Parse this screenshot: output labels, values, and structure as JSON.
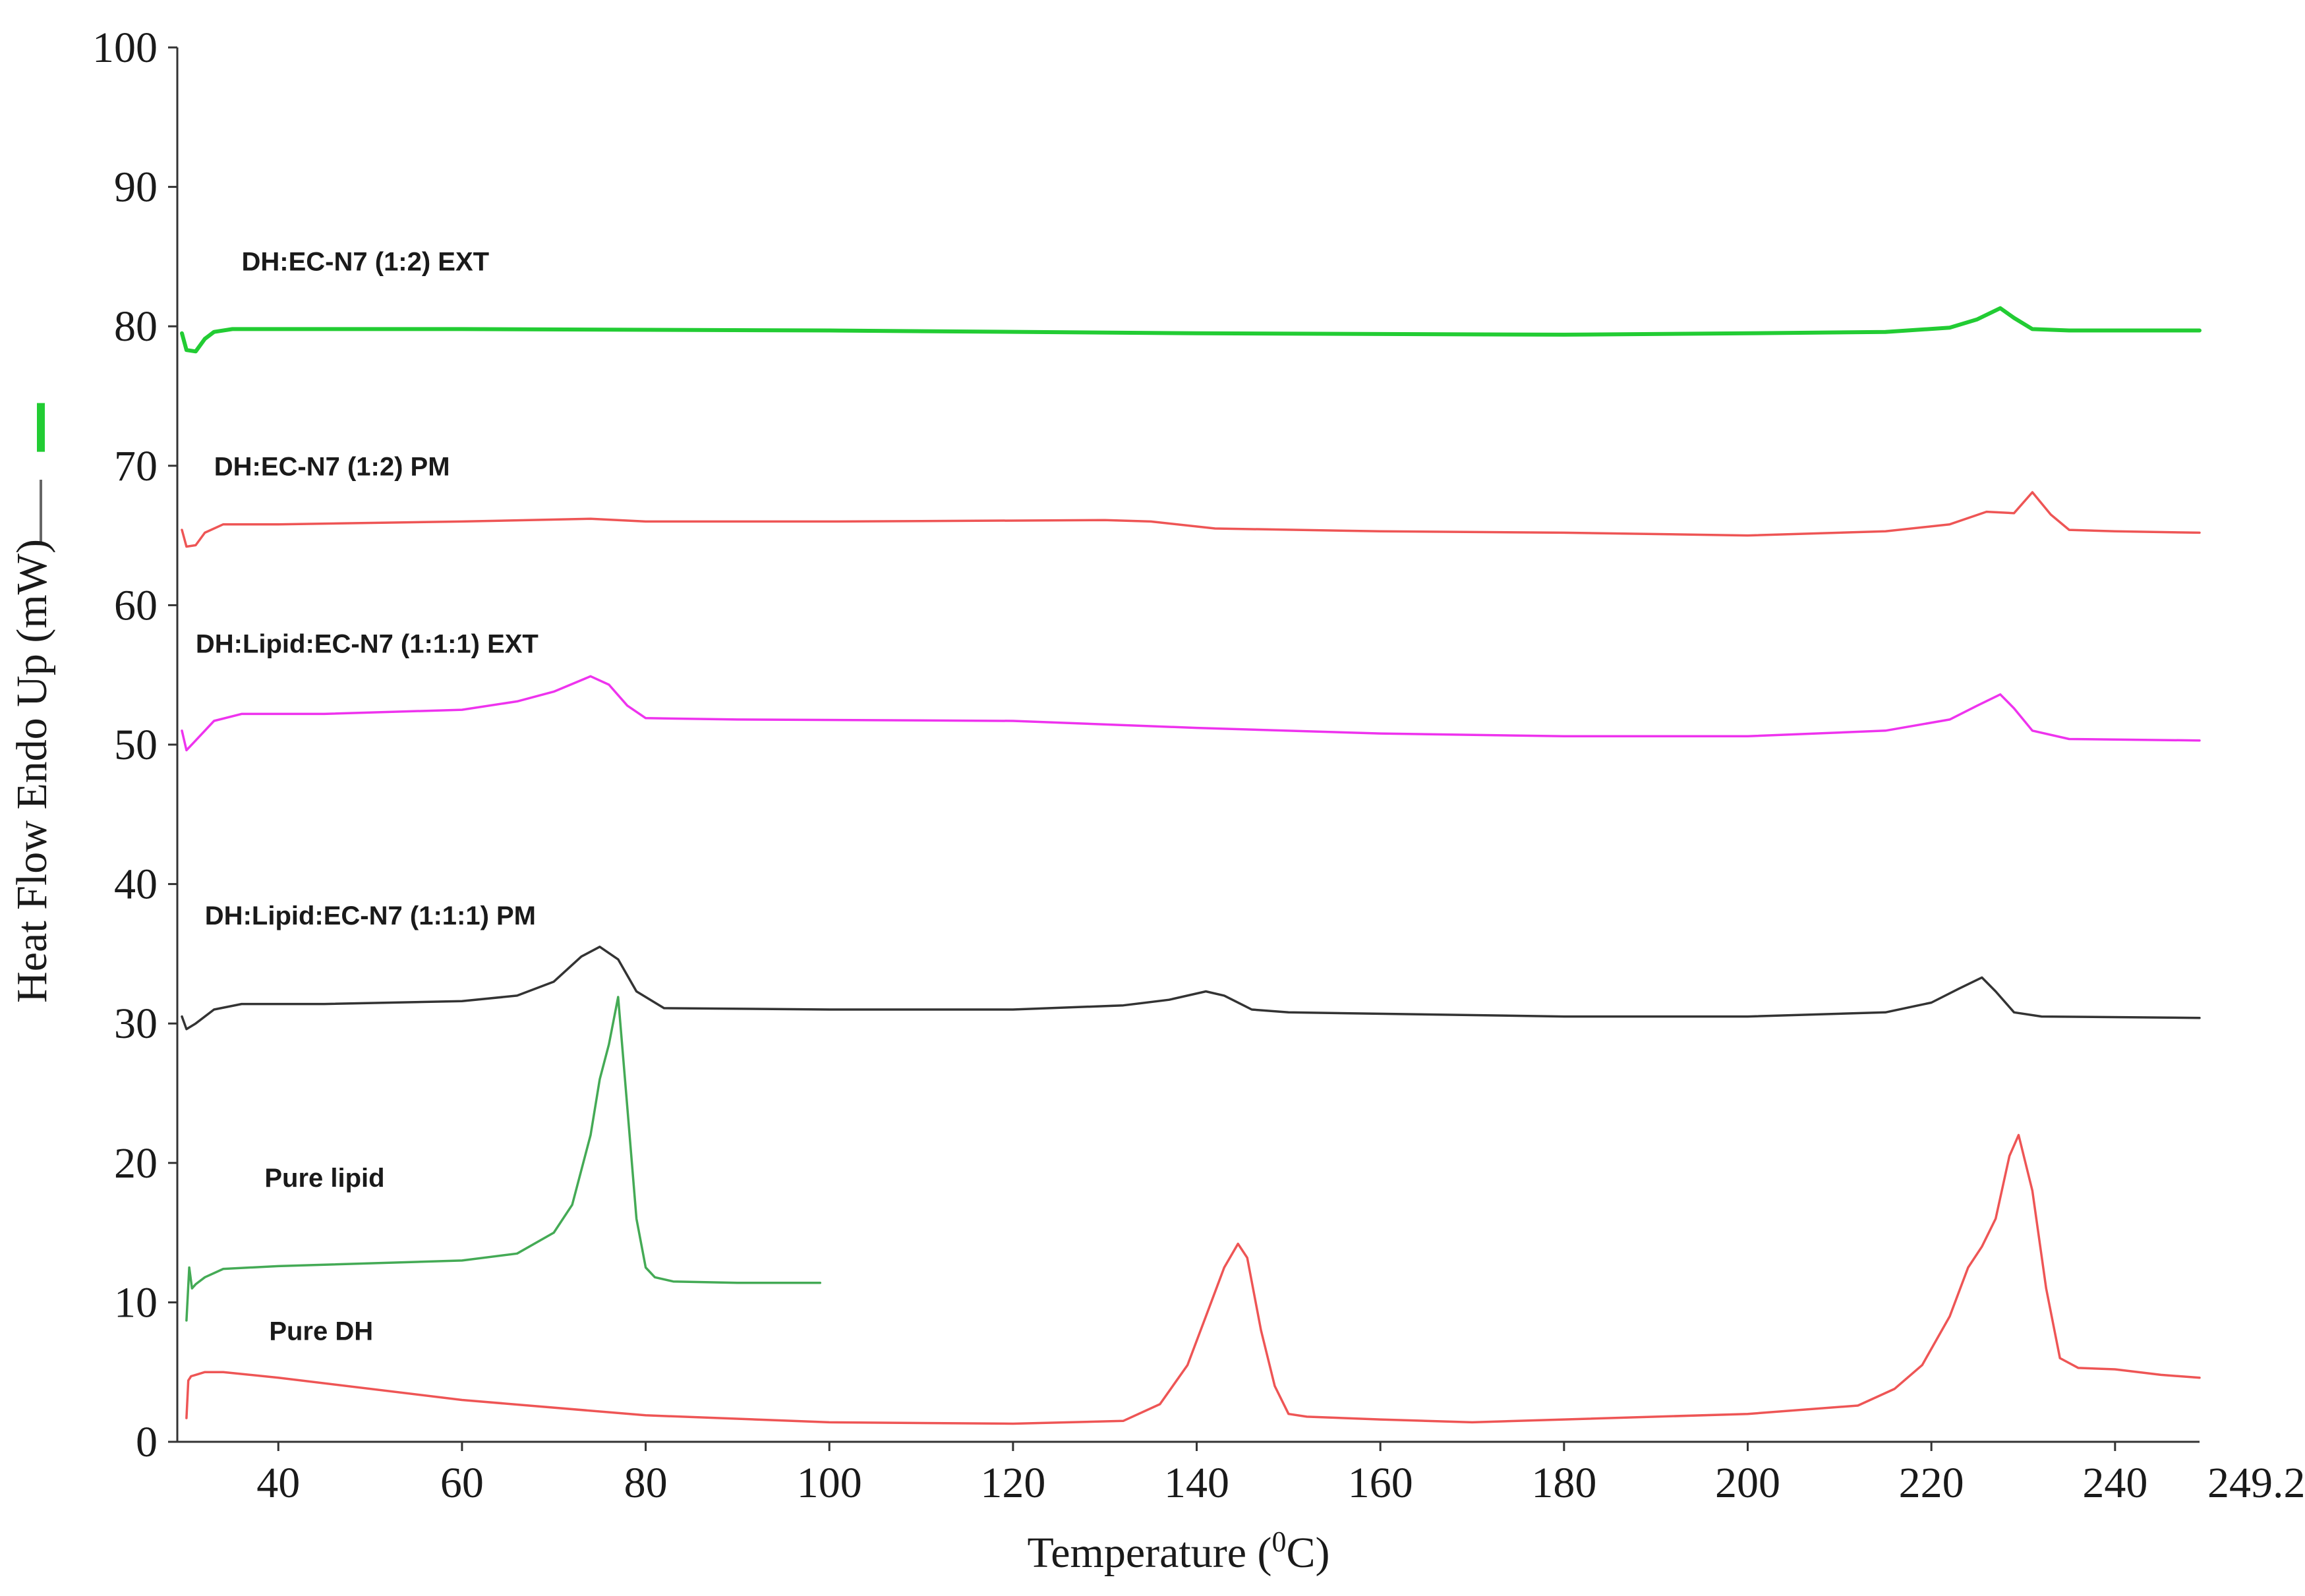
{
  "chart_data": {
    "type": "line",
    "title": "",
    "xlabel": "Temperature (",
    "xlabel_superscript": "0",
    "xlabel_suffix": "C)",
    "ylabel": "Heat Flow Endo Up (mW)",
    "xlim": [
      29,
      249.2
    ],
    "ylim": [
      0,
      100
    ],
    "x_ticks": [
      40,
      60,
      80,
      100,
      120,
      140,
      160,
      180,
      200,
      220,
      240
    ],
    "x_end_label": "249.2",
    "y_ticks": [
      0,
      10,
      20,
      30,
      40,
      50,
      60,
      70,
      80,
      90,
      100
    ],
    "grid": false,
    "series": [
      {
        "name": "DH:EC-N7 (1:2) EXT",
        "color": "#22cc33",
        "label_anchor": [
          36,
          84
        ],
        "x": [
          29.5,
          30,
          31,
          32,
          33,
          35,
          40,
          60,
          100,
          140,
          180,
          200,
          215,
          222,
          225,
          227.5,
          229,
          231,
          235,
          249.2
        ],
        "y": [
          79.5,
          78.3,
          78.2,
          79.1,
          79.6,
          79.8,
          79.8,
          79.8,
          79.7,
          79.5,
          79.4,
          79.5,
          79.6,
          79.9,
          80.5,
          81.3,
          80.6,
          79.8,
          79.7,
          79.7
        ]
      },
      {
        "name": "DH:EC-N7 (1:2) PM",
        "color": "#ee5555",
        "label_anchor": [
          33,
          69.3
        ],
        "x": [
          29.5,
          30,
          31,
          32,
          34,
          40,
          60,
          74,
          80,
          100,
          130,
          135,
          142,
          160,
          180,
          200,
          215,
          222,
          226,
          229,
          231,
          233,
          235,
          240,
          249.2
        ],
        "y": [
          65.4,
          64.2,
          64.3,
          65.2,
          65.8,
          65.8,
          66.0,
          66.2,
          66.0,
          66.0,
          66.1,
          66.0,
          65.5,
          65.3,
          65.2,
          65.0,
          65.3,
          65.8,
          66.7,
          66.6,
          68.1,
          66.5,
          65.4,
          65.3,
          65.2
        ]
      },
      {
        "name": "DH:Lipid:EC-N7 (1:1:1) EXT",
        "color": "#ee33ee",
        "label_anchor": [
          31,
          56.6
        ],
        "x": [
          29.5,
          30,
          31,
          33,
          36,
          45,
          60,
          66,
          70,
          74,
          76,
          78,
          80,
          90,
          120,
          140,
          160,
          180,
          200,
          215,
          222,
          225,
          227.5,
          229,
          231,
          235,
          249.2
        ],
        "y": [
          51.0,
          49.6,
          50.3,
          51.7,
          52.2,
          52.2,
          52.5,
          53.1,
          53.8,
          54.9,
          54.3,
          52.8,
          51.9,
          51.8,
          51.7,
          51.2,
          50.8,
          50.6,
          50.6,
          51.0,
          51.8,
          52.8,
          53.6,
          52.6,
          51.0,
          50.4,
          50.3
        ]
      },
      {
        "name": "DH:Lipid:EC-N7 (1:1:1) PM",
        "color": "#333333",
        "label_anchor": [
          32,
          37.1
        ],
        "x": [
          29.5,
          30,
          31,
          33,
          36,
          45,
          60,
          66,
          70,
          73,
          75,
          77,
          79,
          82,
          100,
          120,
          132,
          137,
          141,
          143,
          146,
          150,
          180,
          200,
          215,
          220,
          223,
          225.5,
          227,
          229,
          232,
          249.2
        ],
        "y": [
          30.5,
          29.6,
          30.0,
          31.0,
          31.4,
          31.4,
          31.6,
          32.0,
          33.0,
          34.8,
          35.5,
          34.6,
          32.3,
          31.1,
          31.0,
          31.0,
          31.3,
          31.7,
          32.3,
          32.0,
          31.0,
          30.8,
          30.5,
          30.5,
          30.8,
          31.5,
          32.5,
          33.3,
          32.3,
          30.8,
          30.5,
          30.4
        ]
      },
      {
        "name": "Pure lipid",
        "color": "#44aa55",
        "label_anchor": [
          38.5,
          18.3
        ],
        "x": [
          30,
          30.3,
          30.6,
          31,
          32,
          34,
          40,
          60,
          66,
          70,
          72,
          74,
          75,
          76,
          77,
          78,
          79,
          80,
          81,
          83,
          90,
          99
        ],
        "y": [
          8.7,
          12.5,
          11.0,
          11.3,
          11.8,
          12.4,
          12.6,
          13.0,
          13.5,
          15.0,
          17.0,
          22.0,
          26.0,
          28.5,
          31.9,
          24.0,
          16.0,
          12.5,
          11.8,
          11.5,
          11.4,
          11.4
        ]
      },
      {
        "name": "Pure DH",
        "color": "#ee5555",
        "label_anchor": [
          39,
          7.3
        ],
        "x": [
          30,
          30.2,
          30.5,
          31,
          32,
          34,
          40,
          60,
          80,
          100,
          120,
          132,
          136,
          139,
          141,
          143,
          144.5,
          145.5,
          147,
          148.5,
          150,
          152,
          160,
          170,
          180,
          200,
          212,
          216,
          219,
          222,
          224,
          225.5,
          227,
          228.5,
          229.5,
          231,
          232.5,
          234,
          236,
          240,
          245,
          249.2
        ],
        "y": [
          1.7,
          4.4,
          4.7,
          4.8,
          5.0,
          5.0,
          4.6,
          3.0,
          1.9,
          1.4,
          1.3,
          1.5,
          2.7,
          5.5,
          9.0,
          12.5,
          14.2,
          13.2,
          8.0,
          4.0,
          2.0,
          1.8,
          1.6,
          1.4,
          1.6,
          2.0,
          2.6,
          3.8,
          5.5,
          9.0,
          12.5,
          14.0,
          16.0,
          20.5,
          22.0,
          18.0,
          11.0,
          6.0,
          5.3,
          5.2,
          4.8,
          4.6
        ]
      }
    ],
    "left_markers": [
      {
        "name": "green-marker",
        "color": "#22cc33",
        "y_from": 71,
        "y_to": 74.5
      },
      {
        "name": "black-marker",
        "color": "#666666",
        "y_from": 64.5,
        "y_to": 69
      }
    ]
  }
}
